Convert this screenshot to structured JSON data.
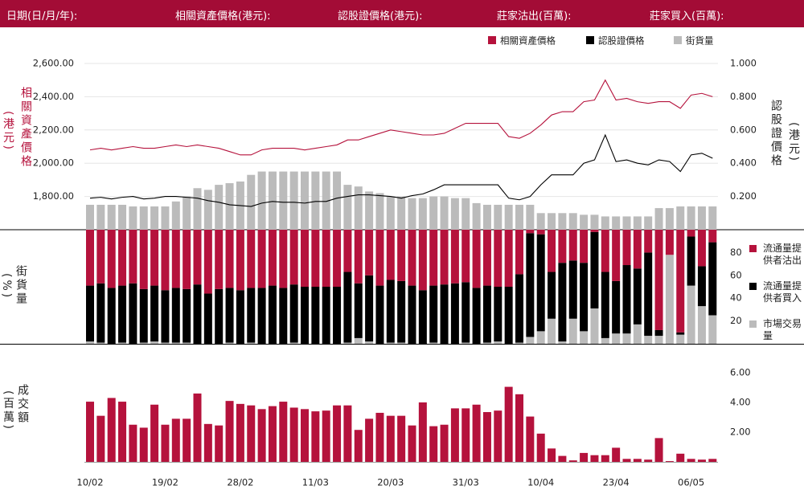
{
  "header": {
    "fields": [
      "日期(日/月/年):",
      "相關資產價格(港元):",
      "認股證價格(港元):",
      "莊家沽出(百萬):",
      "莊家買入(百萬):"
    ]
  },
  "chart_data": [
    {
      "type": "line",
      "ylabel": "相關資產價格",
      "ylabel_unit": "(港元)",
      "y2label": "認股證價格",
      "y2label_unit": "(港元)",
      "ylim": [
        1600,
        2600
      ],
      "yticks": [
        {
          "value": 1800,
          "label": "1,800.00"
        },
        {
          "value": 2000,
          "label": "2,000.00"
        },
        {
          "value": 2200,
          "label": "2,200.00"
        },
        {
          "value": 2400,
          "label": "2,400.00"
        },
        {
          "value": 2600,
          "label": "2,600.00"
        }
      ],
      "y2lim": [
        0,
        1
      ],
      "y2ticks": [
        {
          "value": 0.2,
          "label": "0.200"
        },
        {
          "value": 0.4,
          "label": "0.400"
        },
        {
          "value": 0.6,
          "label": "0.600"
        },
        {
          "value": 0.8,
          "label": "0.800"
        },
        {
          "value": 1,
          "label": "1.000"
        }
      ],
      "y3lim": [
        0,
        100
      ],
      "grid": true,
      "series": [
        {
          "name": "相關資產價格",
          "color": "#b5123c",
          "values": [
            2080,
            2090,
            2080,
            2090,
            2100,
            2090,
            2090,
            2100,
            2110,
            2100,
            2110,
            2100,
            2090,
            2070,
            2050,
            2050,
            2080,
            2090,
            2090,
            2090,
            2080,
            2090,
            2100,
            2110,
            2140,
            2140,
            2160,
            2180,
            2200,
            2190,
            2180,
            2170,
            2170,
            2180,
            2210,
            2240,
            2240,
            2240,
            2240,
            2160,
            2150,
            2180,
            2230,
            2290,
            2310,
            2310,
            2370,
            2380,
            2500,
            2380,
            2390,
            2370,
            2360,
            2370,
            2370,
            2330,
            2410,
            2420,
            2400
          ]
        },
        {
          "name": "認股證價格",
          "color": "#000000",
          "axis": "y2",
          "values": [
            0.19,
            0.195,
            0.185,
            0.195,
            0.2,
            0.185,
            0.19,
            0.2,
            0.2,
            0.195,
            0.19,
            0.175,
            0.165,
            0.15,
            0.145,
            0.14,
            0.16,
            0.17,
            0.165,
            0.165,
            0.16,
            0.17,
            0.17,
            0.19,
            0.2,
            0.21,
            0.21,
            0.205,
            0.2,
            0.19,
            0.205,
            0.215,
            0.24,
            0.27,
            0.27,
            0.27,
            0.27,
            0.27,
            0.27,
            0.19,
            0.18,
            0.2,
            0.27,
            0.33,
            0.33,
            0.33,
            0.4,
            0.42,
            0.57,
            0.41,
            0.42,
            0.4,
            0.39,
            0.42,
            0.41,
            0.35,
            0.45,
            0.46,
            0.43
          ]
        },
        {
          "name": "街貨量",
          "color": "#bbbbbb",
          "type": "bar",
          "axis": "y3",
          "values": [
            15,
            15,
            15,
            15,
            14,
            14,
            14,
            14,
            17,
            20,
            25,
            24,
            27,
            28,
            29,
            33,
            35,
            35,
            35,
            35,
            35,
            35,
            35,
            35,
            27,
            26,
            23,
            22,
            20,
            20,
            19,
            19,
            20,
            20,
            19,
            19,
            16,
            15,
            15,
            15,
            15,
            15,
            10,
            10,
            10,
            10,
            9,
            9,
            8,
            8,
            8,
            8,
            8,
            13,
            13,
            14,
            14,
            14,
            14
          ]
        }
      ]
    },
    {
      "type": "bar",
      "stacked": true,
      "ylabel": "街貨量",
      "ylabel_unit": "(%)",
      "ylim": [
        0,
        100
      ],
      "yticks": [
        20,
        40,
        60,
        80
      ],
      "series": [
        {
          "name": "流通量提供者沽出",
          "color": "#b5123c",
          "values": [
            49,
            47,
            51,
            49,
            47,
            52,
            49,
            53,
            51,
            52,
            48,
            56,
            52,
            51,
            53,
            51,
            51,
            49,
            51,
            48,
            50,
            50,
            50,
            50,
            37,
            47,
            40,
            49,
            44,
            45,
            49,
            53,
            49,
            48,
            47,
            46,
            51,
            49,
            50,
            50,
            39,
            3,
            4,
            37,
            29,
            27,
            29,
            2,
            37,
            45,
            31,
            34,
            20,
            88,
            22,
            90,
            6,
            32,
            11
          ]
        },
        {
          "name": "流通量提供者買入",
          "color": "#000000",
          "values": [
            49,
            52,
            49,
            50,
            53,
            47,
            49,
            46,
            48,
            47,
            52,
            44,
            48,
            48,
            47,
            48,
            49,
            51,
            49,
            51,
            50,
            50,
            50,
            50,
            62,
            48,
            58,
            51,
            55,
            54,
            51,
            47,
            50,
            52,
            53,
            53,
            49,
            50,
            48,
            50,
            60,
            91,
            85,
            41,
            69,
            51,
            60,
            67,
            58,
            46,
            60,
            49,
            73,
            5,
            0,
            2,
            43,
            35,
            64
          ]
        },
        {
          "name": "市場交易量",
          "color": "#bbbbbb",
          "values": [
            2,
            1,
            0,
            1,
            0,
            1,
            2,
            1,
            1,
            1,
            0,
            0,
            0,
            1,
            0,
            1,
            0,
            0,
            0,
            1,
            0,
            0,
            0,
            0,
            1,
            5,
            2,
            0,
            1,
            1,
            0,
            0,
            1,
            0,
            0,
            1,
            0,
            1,
            2,
            0,
            1,
            6,
            11,
            22,
            2,
            22,
            11,
            31,
            5,
            9,
            9,
            17,
            7,
            7,
            78,
            8,
            51,
            33,
            25
          ]
        }
      ]
    },
    {
      "type": "bar",
      "ylabel": "成交額",
      "ylabel_unit": "(百萬)",
      "ylim": [
        0,
        6
      ],
      "yticks": [
        {
          "value": 2,
          "label": "2.00"
        },
        {
          "value": 4,
          "label": "4.00"
        },
        {
          "value": 6,
          "label": "6.00"
        }
      ],
      "color": "#b5123c",
      "categories": [
        "10/02",
        null,
        null,
        null,
        null,
        null,
        null,
        "19/02",
        null,
        null,
        null,
        null,
        null,
        null,
        "28/02",
        null,
        null,
        null,
        null,
        null,
        null,
        "11/03",
        null,
        null,
        null,
        null,
        null,
        null,
        "20/03",
        null,
        null,
        null,
        null,
        null,
        null,
        "31/03",
        null,
        null,
        null,
        null,
        null,
        null,
        "10/04",
        null,
        null,
        null,
        null,
        null,
        null,
        "23/04",
        null,
        null,
        null,
        null,
        null,
        null,
        "06/05",
        null,
        null
      ],
      "values": [
        4.05,
        3.1,
        4.3,
        4.05,
        2.5,
        2.3,
        3.85,
        2.5,
        2.9,
        2.9,
        4.6,
        2.55,
        2.45,
        4.1,
        3.9,
        3.8,
        3.55,
        3.75,
        4.05,
        3.65,
        3.55,
        3.4,
        3.45,
        3.8,
        3.8,
        2.15,
        2.9,
        3.3,
        3.1,
        3.1,
        2.45,
        4.0,
        2.4,
        2.5,
        3.6,
        3.6,
        3.85,
        3.35,
        3.45,
        5.05,
        4.55,
        3.05,
        1.9,
        0.9,
        0.4,
        0.1,
        0.6,
        0.45,
        0.45,
        0.95,
        0.2,
        0.2,
        0.15,
        1.6,
        0.05,
        0.55,
        0.2,
        0.15,
        0.2
      ]
    }
  ]
}
